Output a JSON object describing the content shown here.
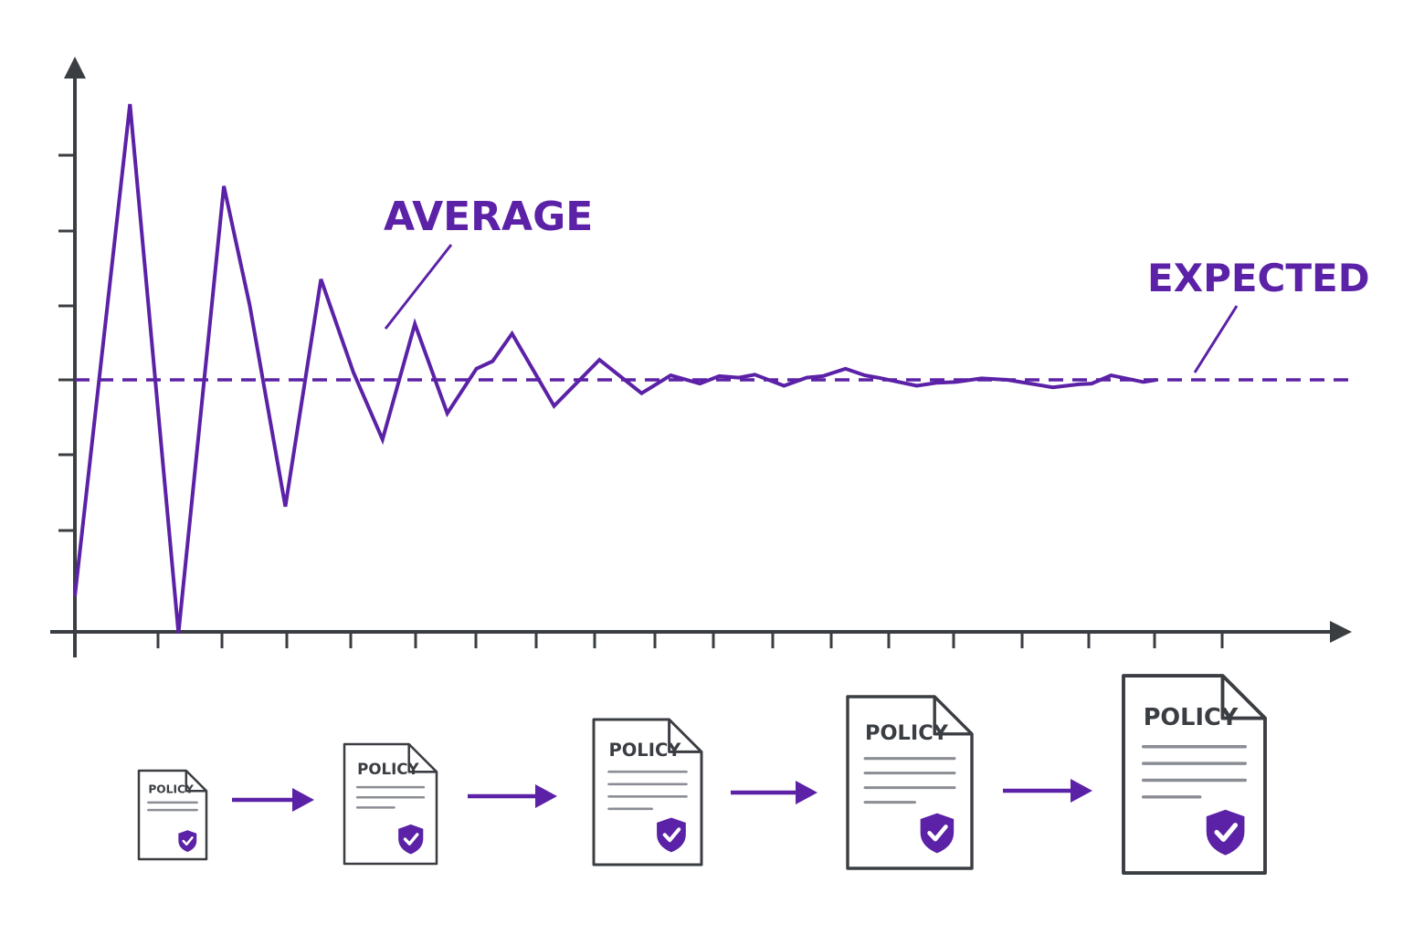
{
  "colors": {
    "accent": "#5b21a6",
    "axis": "#3a3d42",
    "doc_line": "#8a8d93",
    "background": "#ffffff"
  },
  "labels": {
    "average": "AVERAGE",
    "expected": "EXPECTED"
  },
  "chart_data": {
    "type": "line",
    "expected_value": 0,
    "ylim": [
      -3.4,
      3.75
    ],
    "xlim": [
      0,
      19.2
    ],
    "y_tick_count": 7,
    "x_tick_count": 18,
    "series": [
      {
        "line_style": "solid",
        "x": [
          0,
          0.85,
          1.6,
          2.3,
          2.7,
          3.25,
          3.8,
          4.3,
          4.75,
          5.25,
          5.75,
          6.2,
          6.45,
          6.75,
          7.4,
          8.1,
          8.75,
          9.2,
          9.65,
          9.95,
          10.25,
          10.5,
          10.95,
          11.3,
          11.55,
          11.9,
          12.2,
          12.4,
          13.0,
          13.3,
          13.6,
          14.0,
          14.4,
          15.1,
          15.5,
          15.7,
          16.0,
          16.5,
          16.7
        ],
        "y": [
          -2.9,
          3.7,
          -3.4,
          2.6,
          1.0,
          -1.7,
          1.35,
          0.1,
          -0.8,
          0.75,
          -0.45,
          0.15,
          0.25,
          0.62,
          -0.35,
          0.27,
          -0.18,
          0.06,
          -0.05,
          0.05,
          0.03,
          0.07,
          -0.08,
          0.03,
          0.05,
          0.15,
          0.06,
          0.03,
          -0.08,
          -0.04,
          -0.03,
          0.02,
          0.0,
          -0.1,
          -0.06,
          -0.05,
          0.06,
          -0.03,
          0.0
        ]
      }
    ]
  },
  "documents": [
    {
      "title": "POLICY"
    },
    {
      "title": "POLICY"
    },
    {
      "title": "POLICY"
    },
    {
      "title": "POLICY"
    },
    {
      "title": "POLICY"
    }
  ],
  "icons": {
    "document": "document-icon",
    "shield": "shield-check-icon",
    "arrow": "arrow-right-icon"
  }
}
